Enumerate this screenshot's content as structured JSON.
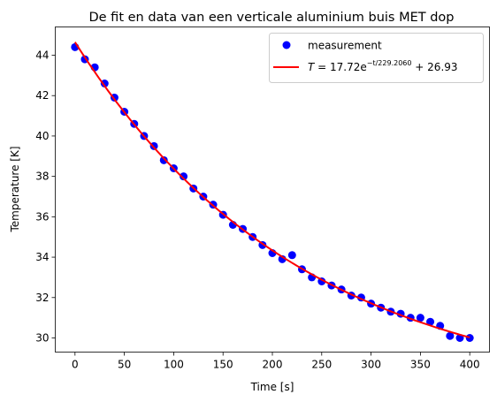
{
  "chart_data": {
    "type": "scatter",
    "title": "De fit en data van een verticale aluminium buis MET dop",
    "xlabel": "Time [s]",
    "ylabel": "Temperature [K]",
    "xlim": [
      -20,
      420
    ],
    "ylim": [
      29.3,
      45.4
    ],
    "xticks": [
      0,
      50,
      100,
      150,
      200,
      250,
      300,
      350,
      400
    ],
    "yticks": [
      30,
      32,
      34,
      36,
      38,
      40,
      42,
      44
    ],
    "grid": false,
    "legend_position": "top-right",
    "series": [
      {
        "name": "measurement",
        "kind": "scatter",
        "color": "#0000ff",
        "x": [
          0,
          10,
          20,
          30,
          40,
          50,
          60,
          70,
          80,
          90,
          100,
          110,
          120,
          130,
          140,
          150,
          160,
          170,
          180,
          190,
          200,
          210,
          220,
          230,
          240,
          250,
          260,
          270,
          280,
          290,
          300,
          310,
          320,
          330,
          340,
          350,
          360,
          370,
          380,
          390,
          400
        ],
        "y": [
          44.4,
          43.8,
          43.4,
          42.6,
          41.9,
          41.2,
          40.6,
          40.0,
          39.5,
          38.8,
          38.4,
          38.0,
          37.4,
          37.0,
          36.6,
          36.1,
          35.6,
          35.4,
          35.0,
          34.6,
          34.2,
          33.9,
          34.1,
          33.4,
          33.0,
          32.8,
          32.6,
          32.4,
          32.1,
          32.0,
          31.7,
          31.5,
          31.3,
          31.2,
          31.0,
          31.0,
          30.8,
          30.6,
          30.1,
          30.0,
          30.0
        ]
      },
      {
        "name": "fit",
        "kind": "line",
        "color": "#ff0000",
        "function": "exp_decay",
        "A": 17.72,
        "tau": 229.206,
        "C": 26.93,
        "x_range": [
          0,
          400
        ]
      }
    ]
  },
  "legend": {
    "measurement_label": "measurement",
    "fit_label": {
      "T": "T",
      "eq": " = 17.72e",
      "exponent": "−t/229.2060",
      "tail": " + 26.93"
    }
  }
}
